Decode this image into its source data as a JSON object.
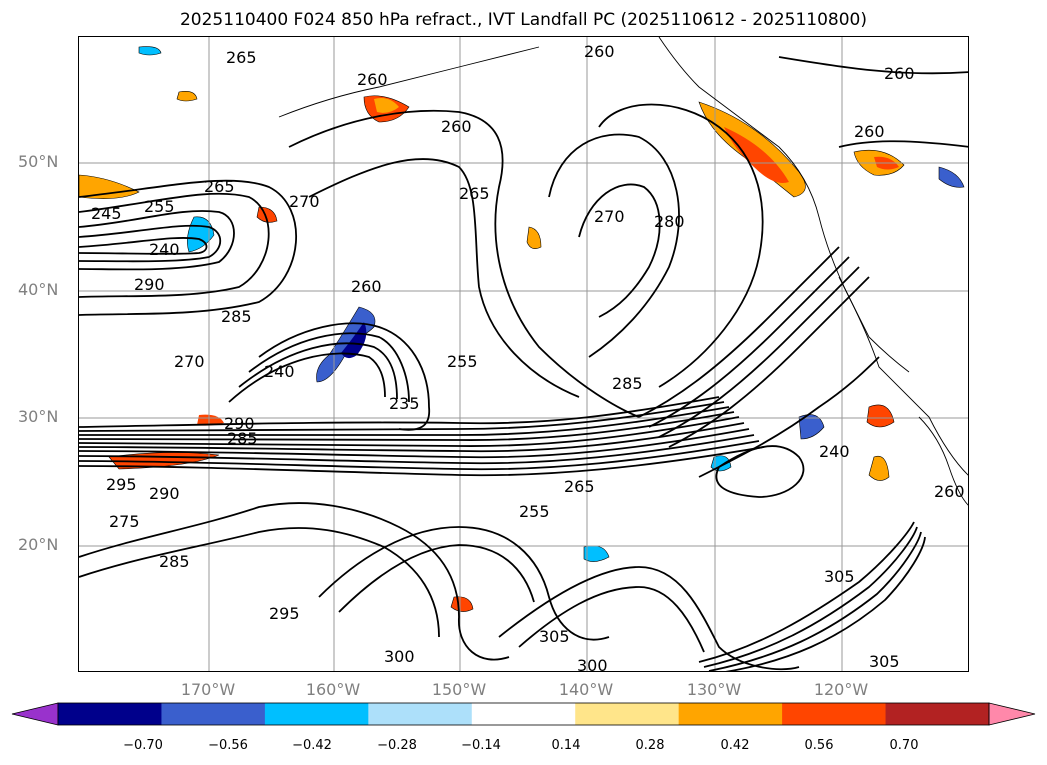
{
  "title": "2025110400 F024 850 hPa refract., IVT Landfall PC (2025110612 - 2025110800)",
  "lat_labels": [
    "50°N",
    "40°N",
    "30°N",
    "20°N"
  ],
  "lon_labels": [
    "170°W",
    "160°W",
    "150°W",
    "140°W",
    "130°W",
    "120°W"
  ],
  "contour_labels": [
    "265",
    "260",
    "260",
    "260",
    "260",
    "260",
    "265",
    "270",
    "265",
    "270",
    "280",
    "245",
    "255",
    "240",
    "290",
    "260",
    "285",
    "270",
    "240",
    "255",
    "235",
    "285",
    "290",
    "285",
    "295",
    "290",
    "275",
    "285",
    "305",
    "305",
    "300",
    "300",
    "305",
    "240",
    "265",
    "255",
    "295",
    "260"
  ],
  "colorbar": {
    "ticks": [
      "−0.70",
      "−0.56",
      "−0.42",
      "−0.28",
      "−0.14",
      "0.14",
      "0.28",
      "0.42",
      "0.56",
      "0.70"
    ],
    "colors": [
      "#9932CC",
      "#00008B",
      "#3A5FCD",
      "#00BFFF",
      "#ADE0FA",
      "#FFFFFF",
      "#FFE58A",
      "#FFA500",
      "#FF4500",
      "#B22222",
      "#FF88AA"
    ]
  }
}
